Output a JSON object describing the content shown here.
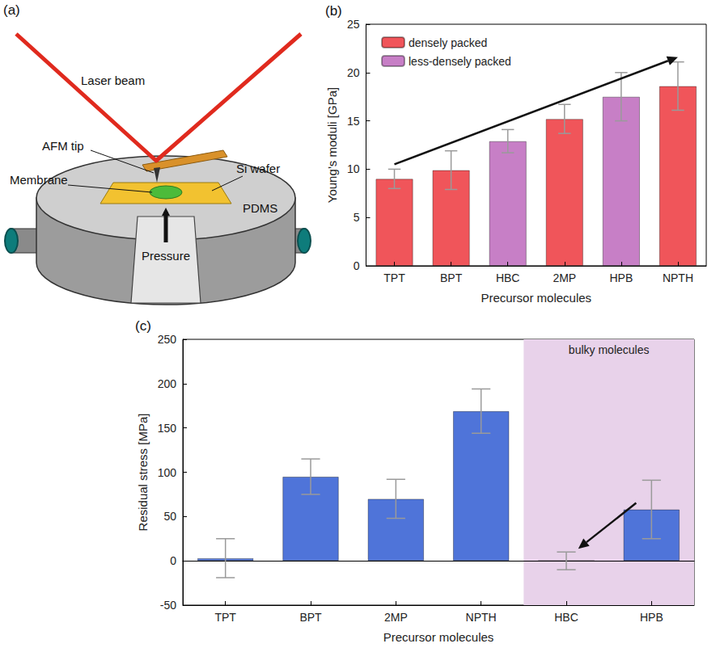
{
  "diagram": {
    "title": "(a)",
    "labels": {
      "laser": "Laser beam",
      "tip": "AFM tip",
      "membrane": "Membrane",
      "wafer": "Si wafer",
      "pdms": "PDMS",
      "pressure": "Pressure"
    }
  },
  "chart_data": [
    {
      "type": "bar",
      "title": "(b)",
      "x_label": "Precursor molecules",
      "y_label": "Young’s moduli [GPa]",
      "categories": [
        "TPT",
        "BPT",
        "HBC",
        "2MP",
        "HPB",
        "NPTH"
      ],
      "series": [
        {
          "name": "densely packed",
          "color": "#f0555a",
          "values": [
            9.0,
            9.9,
            null,
            15.2,
            null,
            18.6
          ],
          "errors": [
            1.0,
            2.0,
            null,
            1.5,
            null,
            2.5
          ]
        },
        {
          "name": "less-densely packed",
          "color": "#c77fc6",
          "values": [
            null,
            null,
            12.9,
            null,
            17.5,
            null
          ],
          "errors": [
            null,
            null,
            1.2,
            null,
            2.5,
            null
          ]
        }
      ],
      "ylim": [
        0,
        25
      ],
      "yticks": [
        0,
        5,
        10,
        15,
        20,
        25
      ],
      "grid": false,
      "legend": "upper left"
    },
    {
      "type": "bar",
      "title": "(c)",
      "x_label": "Precursor molecules",
      "y_label": "Residual stress [MPa]",
      "categories": [
        "TPT",
        "BPT",
        "2MP",
        "NPTH",
        "HBC",
        "HPB"
      ],
      "values": [
        3,
        95,
        70,
        169,
        0,
        58
      ],
      "errors": [
        22,
        20,
        22,
        25,
        10,
        33
      ],
      "color": "#4f74d9",
      "ylim": [
        -50,
        250
      ],
      "yticks": [
        -50,
        0,
        50,
        100,
        150,
        200,
        250
      ],
      "grid": false,
      "annotations": [
        {
          "text": "bulky molecules",
          "categories": [
            "HBC",
            "HPB"
          ]
        }
      ]
    }
  ]
}
